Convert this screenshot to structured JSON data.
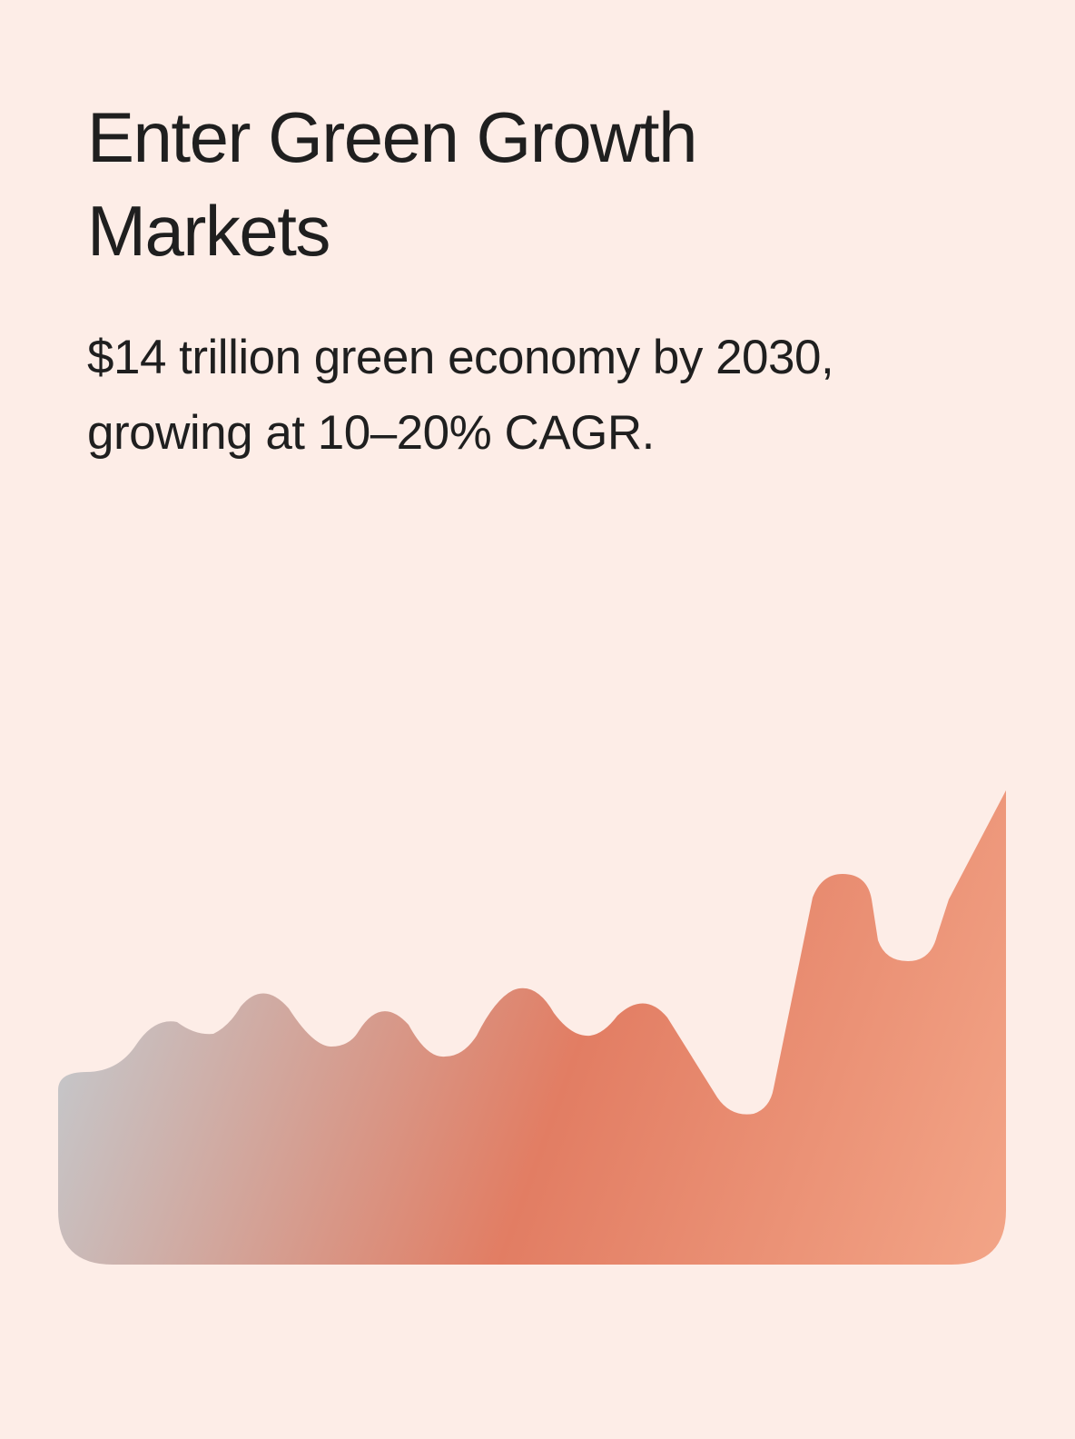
{
  "header": {
    "title": "Enter Green Growth Markets",
    "subtitle": "$14 trillion green economy by 2030, growing at 10–20% CAGR."
  }
}
